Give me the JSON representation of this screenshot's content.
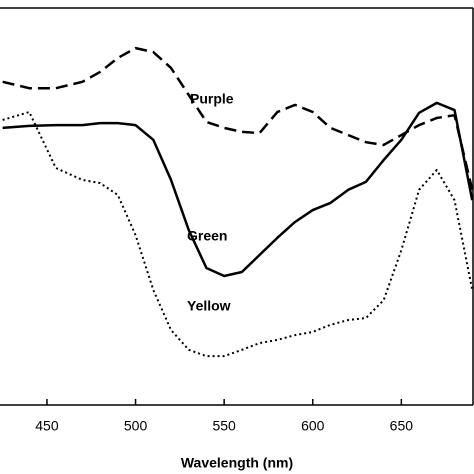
{
  "chart_data": {
    "type": "line",
    "x_label": "Wavelength (nm)",
    "x": [
      425,
      440,
      455,
      470,
      480,
      490,
      500,
      510,
      520,
      530,
      540,
      550,
      560,
      570,
      580,
      590,
      600,
      610,
      620,
      630,
      640,
      650,
      660,
      670,
      680,
      690
    ],
    "xlim": [
      423.5,
      691
    ],
    "xticks": [
      450,
      500,
      550,
      600,
      650
    ],
    "ylim": [
      0,
      100
    ],
    "series": [
      {
        "name": "Purple",
        "color": "#000000",
        "line_style": "dashed",
        "values": [
          81.4,
          79.8,
          79.8,
          81.4,
          83.9,
          87.4,
          89.9,
          88.9,
          84.9,
          78.1,
          71.3,
          69.8,
          68.8,
          68.5,
          73.8,
          75.6,
          73.8,
          69.8,
          68.0,
          66.2,
          65.5,
          68.0,
          70.5,
          72.3,
          73.0,
          54.2
        ]
      },
      {
        "name": "Green",
        "color": "#000000",
        "line_style": "solid",
        "values": [
          69.8,
          70.3,
          70.5,
          70.5,
          71.0,
          71.0,
          70.5,
          66.8,
          56.7,
          44.1,
          34.5,
          32.5,
          33.5,
          37.8,
          42.1,
          46.1,
          49.1,
          50.9,
          54.2,
          56.2,
          61.7,
          66.8,
          73.6,
          76.1,
          74.3,
          51.6
        ]
      },
      {
        "name": "Yellow",
        "color": "#000000",
        "line_style": "dotted",
        "values": [
          71.8,
          73.8,
          59.7,
          56.7,
          55.9,
          52.9,
          42.8,
          29.0,
          18.9,
          13.9,
          12.3,
          12.3,
          13.9,
          15.6,
          16.4,
          17.6,
          18.4,
          20.2,
          21.4,
          21.9,
          26.4,
          39.0,
          54.2,
          59.2,
          51.6,
          29.0
        ]
      }
    ]
  }
}
